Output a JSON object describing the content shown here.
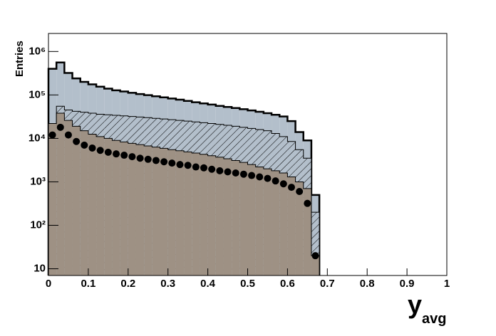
{
  "chart_data": {
    "type": "histogram",
    "log_y": true,
    "ylabel": "Entries",
    "xlabel": "y",
    "xlabel_sub": "avg",
    "bins": [
      0,
      0.02,
      0.04,
      0.06,
      0.08,
      0.1,
      0.12,
      0.14,
      0.16,
      0.18,
      0.2,
      0.22,
      0.24,
      0.26,
      0.28,
      0.3,
      0.32,
      0.34,
      0.36,
      0.38,
      0.4,
      0.42,
      0.44,
      0.46,
      0.48,
      0.5,
      0.52,
      0.54,
      0.56,
      0.58,
      0.6,
      0.62,
      0.64,
      0.66,
      0.68
    ],
    "series": [
      {
        "color": "#b3bfcb",
        "outline": 2.5,
        "hatch": false,
        "values": [
          400000,
          560000,
          320000,
          240000,
          200000,
          175000,
          155000,
          140000,
          128000,
          120000,
          112000,
          105000,
          99000,
          93000,
          88000,
          83000,
          78000,
          73000,
          68000,
          64000,
          60000,
          56000,
          53000,
          50000,
          47000,
          44000,
          41000,
          38000,
          35000,
          32000,
          25000,
          14000,
          9000,
          500
        ]
      },
      {
        "color": "#b3bfcb",
        "outline": 1,
        "hatch": true,
        "values": [
          20000,
          55000,
          45000,
          42000,
          40000,
          38000,
          36000,
          35000,
          34000,
          33000,
          32000,
          31000,
          30000,
          29000,
          28000,
          27000,
          26000,
          25000,
          24000,
          23000,
          22000,
          21000,
          20000,
          19000,
          18000,
          17000,
          16000,
          15000,
          13000,
          11000,
          8500,
          5500,
          3500,
          200
        ]
      },
      {
        "color": "#9e9184",
        "outline": 1,
        "hatch": false,
        "values": [
          22000,
          38000,
          26000,
          19000,
          15000,
          12500,
          11000,
          10000,
          9000,
          8300,
          7700,
          7200,
          6700,
          6300,
          5900,
          5500,
          5200,
          4900,
          4600,
          4300,
          4000,
          3700,
          3400,
          3100,
          2800,
          2500,
          2200,
          2000,
          1800,
          1600,
          1300,
          1000,
          700,
          20
        ]
      }
    ],
    "points": {
      "color": "#000000",
      "values": [
        12000,
        18000,
        12000,
        8500,
        7000,
        6000,
        5300,
        4800,
        4400,
        4100,
        3800,
        3500,
        3300,
        3100,
        2900,
        2700,
        2500,
        2400,
        2200,
        2100,
        1950,
        1800,
        1700,
        1600,
        1500,
        1400,
        1300,
        1200,
        1050,
        900,
        750,
        600,
        320,
        20
      ]
    },
    "xlim": [
      0,
      1
    ],
    "xticks": [
      0,
      0.1,
      0.2,
      0.3,
      0.4,
      0.5,
      0.6,
      0.7,
      0.8,
      0.9,
      1
    ],
    "ylim": [
      7,
      2600000
    ],
    "yticks": [
      {
        "value": 10,
        "label": "10"
      },
      {
        "value": 100,
        "label": "10²"
      },
      {
        "value": 1000,
        "label": "10³"
      },
      {
        "value": 10000,
        "label": "10⁴"
      },
      {
        "value": 100000,
        "label": "10⁵"
      },
      {
        "value": 1000000,
        "label": "10⁶"
      }
    ]
  }
}
